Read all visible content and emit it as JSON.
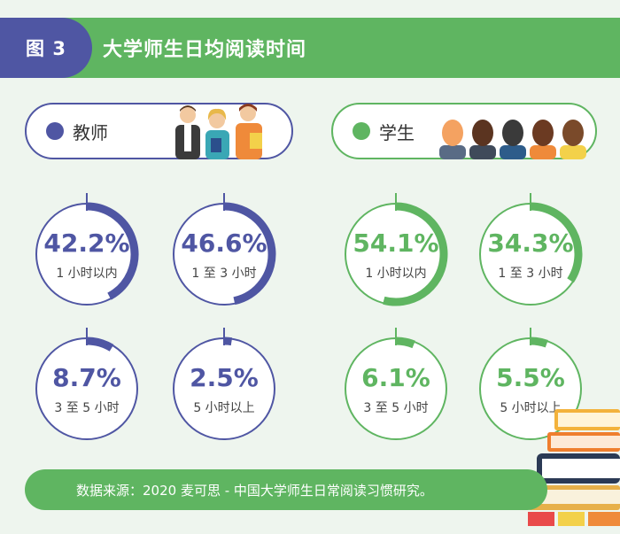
{
  "header": {
    "figure_tag": "图 3",
    "title": "大学师生日均阅读时间"
  },
  "groups": {
    "teacher": {
      "label": "教师"
    },
    "student": {
      "label": "学生"
    }
  },
  "rings": [
    {
      "group": "teacher",
      "percent": 42.2,
      "pct_text": "42.2%",
      "label": "1 小时以内"
    },
    {
      "group": "teacher",
      "percent": 46.6,
      "pct_text": "46.6%",
      "label": "1 至 3 小时"
    },
    {
      "group": "teacher",
      "percent": 8.7,
      "pct_text": "8.7%",
      "label": "3 至 5 小时"
    },
    {
      "group": "teacher",
      "percent": 2.5,
      "pct_text": "2.5%",
      "label": "5 小时以上"
    },
    {
      "group": "student",
      "percent": 54.1,
      "pct_text": "54.1%",
      "label": "1 小时以内"
    },
    {
      "group": "student",
      "percent": 34.3,
      "pct_text": "34.3%",
      "label": "1 至 3 小时"
    },
    {
      "group": "student",
      "percent": 6.1,
      "pct_text": "6.1%",
      "label": "3 至 5 小时"
    },
    {
      "group": "student",
      "percent": 5.5,
      "pct_text": "5.5%",
      "label": "5 小时以上"
    }
  ],
  "source": "数据来源：2020 麦可思 - 中国大学师生日常阅读习惯研究。",
  "colors": {
    "teacher": "#4f56a3",
    "student": "#5fb561",
    "background": "#eef5ee"
  }
}
